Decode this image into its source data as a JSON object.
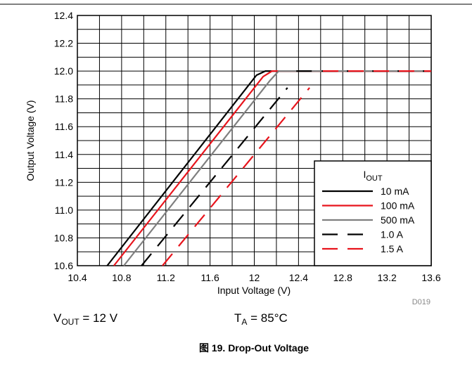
{
  "chart_data": {
    "type": "line",
    "xlabel": "Input Voltage (V)",
    "ylabel": "Output Voltage (V)",
    "xlim": [
      10.4,
      13.6
    ],
    "ylim": [
      10.6,
      12.4
    ],
    "xticks": [
      10.4,
      10.8,
      11.2,
      11.6,
      12.0,
      12.4,
      12.8,
      13.2,
      13.6
    ],
    "yticks": [
      10.6,
      10.8,
      11.0,
      11.2,
      11.4,
      11.6,
      11.8,
      12.0,
      12.2,
      12.4
    ],
    "xgrid": [
      10.6,
      11.0,
      11.4,
      11.8,
      12.2,
      12.6,
      13.0,
      13.4
    ],
    "ygrid": [
      10.7,
      10.9,
      11.1,
      11.3,
      11.5,
      11.7,
      11.9,
      12.1,
      12.3
    ],
    "grid": true,
    "legend_title": "I",
    "legend_title_sub": "OUT",
    "legend_position": "lower right",
    "series": [
      {
        "name": "10 mA",
        "color": "#000000",
        "dash": false,
        "x": [
          10.67,
          12.02,
          12.1,
          13.6
        ],
        "values": [
          10.6,
          11.97,
          12.0,
          12.0
        ]
      },
      {
        "name": "100 mA",
        "color": "#e8141c",
        "dash": false,
        "x": [
          10.73,
          12.08,
          12.16,
          13.6
        ],
        "values": [
          10.6,
          11.96,
          12.0,
          12.0
        ]
      },
      {
        "name": "500 mA",
        "color": "#7f7f7f",
        "dash": false,
        "x": [
          10.82,
          12.14,
          12.22,
          13.6
        ],
        "values": [
          10.6,
          11.93,
          12.0,
          12.0
        ]
      },
      {
        "name": "1.0 A",
        "color": "#000000",
        "dash": true,
        "x": [
          10.98,
          12.3,
          null,
          12.38,
          13.6
        ],
        "values": [
          10.6,
          11.88,
          null,
          12.0,
          12.0
        ]
      },
      {
        "name": "1.5 A",
        "color": "#e8141c",
        "dash": true,
        "x": [
          11.17,
          12.5,
          null,
          12.62,
          13.6
        ],
        "values": [
          10.6,
          11.88,
          null,
          12.0,
          12.0
        ]
      }
    ],
    "annotations": [
      {
        "main": "V",
        "sub": "OUT",
        "rest": " = 12 V"
      },
      {
        "main": "T",
        "sub": "A",
        "rest": " = 85°C"
      }
    ],
    "figure_id": "D019",
    "caption": "图 19. Drop-Out Voltage"
  }
}
